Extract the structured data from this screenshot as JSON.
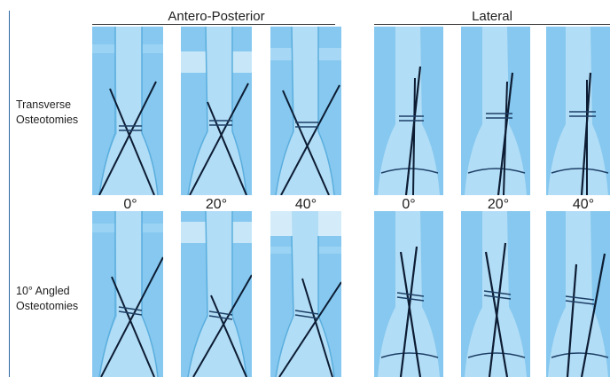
{
  "headers": {
    "ap": "Antero-Posterior",
    "lateral": "Lateral"
  },
  "rows": [
    {
      "line1": "Transverse",
      "line2": "Osteotomies"
    },
    {
      "line1": "10° Angled",
      "line2": "Osteotomies"
    }
  ],
  "angles": {
    "ap": [
      "0°",
      "20°",
      "40°"
    ],
    "lateral": [
      "0°",
      "20°",
      "40°"
    ]
  },
  "colors": {
    "radiograph_blue": "#7cc3ee",
    "bone_blue": "#b2ddf6",
    "wire": "#0c1c33"
  }
}
